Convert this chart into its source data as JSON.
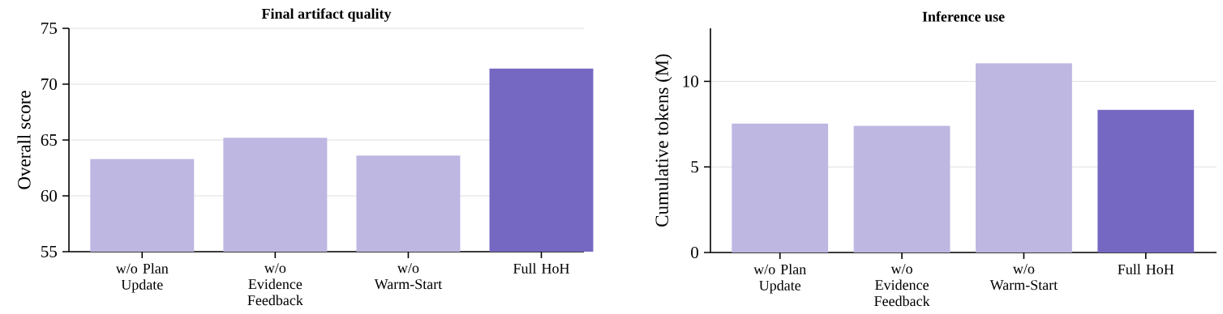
{
  "chart_data": [
    {
      "type": "bar",
      "title": "Final artifact quality",
      "ylabel": "Overall score",
      "categories": [
        "w/o Plan Update",
        "w/o Evidence Feedback",
        "w/o Warm-Start",
        "Full HoH"
      ],
      "values": [
        63.3,
        65.2,
        63.6,
        71.4
      ],
      "colors": [
        "#bdb7e2",
        "#bdb7e2",
        "#bdb7e2",
        "#7568c2"
      ],
      "ylim": [
        55,
        75
      ],
      "yticks": [
        55,
        60,
        65,
        70,
        75
      ],
      "grid": "y"
    },
    {
      "type": "bar",
      "title": "Inference use",
      "ylabel": "Cumulative tokens (M)",
      "categories": [
        "w/o Plan Update",
        "w/o Evidence Feedback",
        "w/o Warm-Start",
        "Full HoH"
      ],
      "values": [
        7.53,
        7.4,
        11.05,
        8.34
      ],
      "colors": [
        "#bdb7e2",
        "#bdb7e2",
        "#bdb7e2",
        "#7568c2"
      ],
      "ylim": [
        0,
        13.1
      ],
      "yticks": [
        0,
        5,
        10
      ],
      "grid": "y"
    }
  ]
}
